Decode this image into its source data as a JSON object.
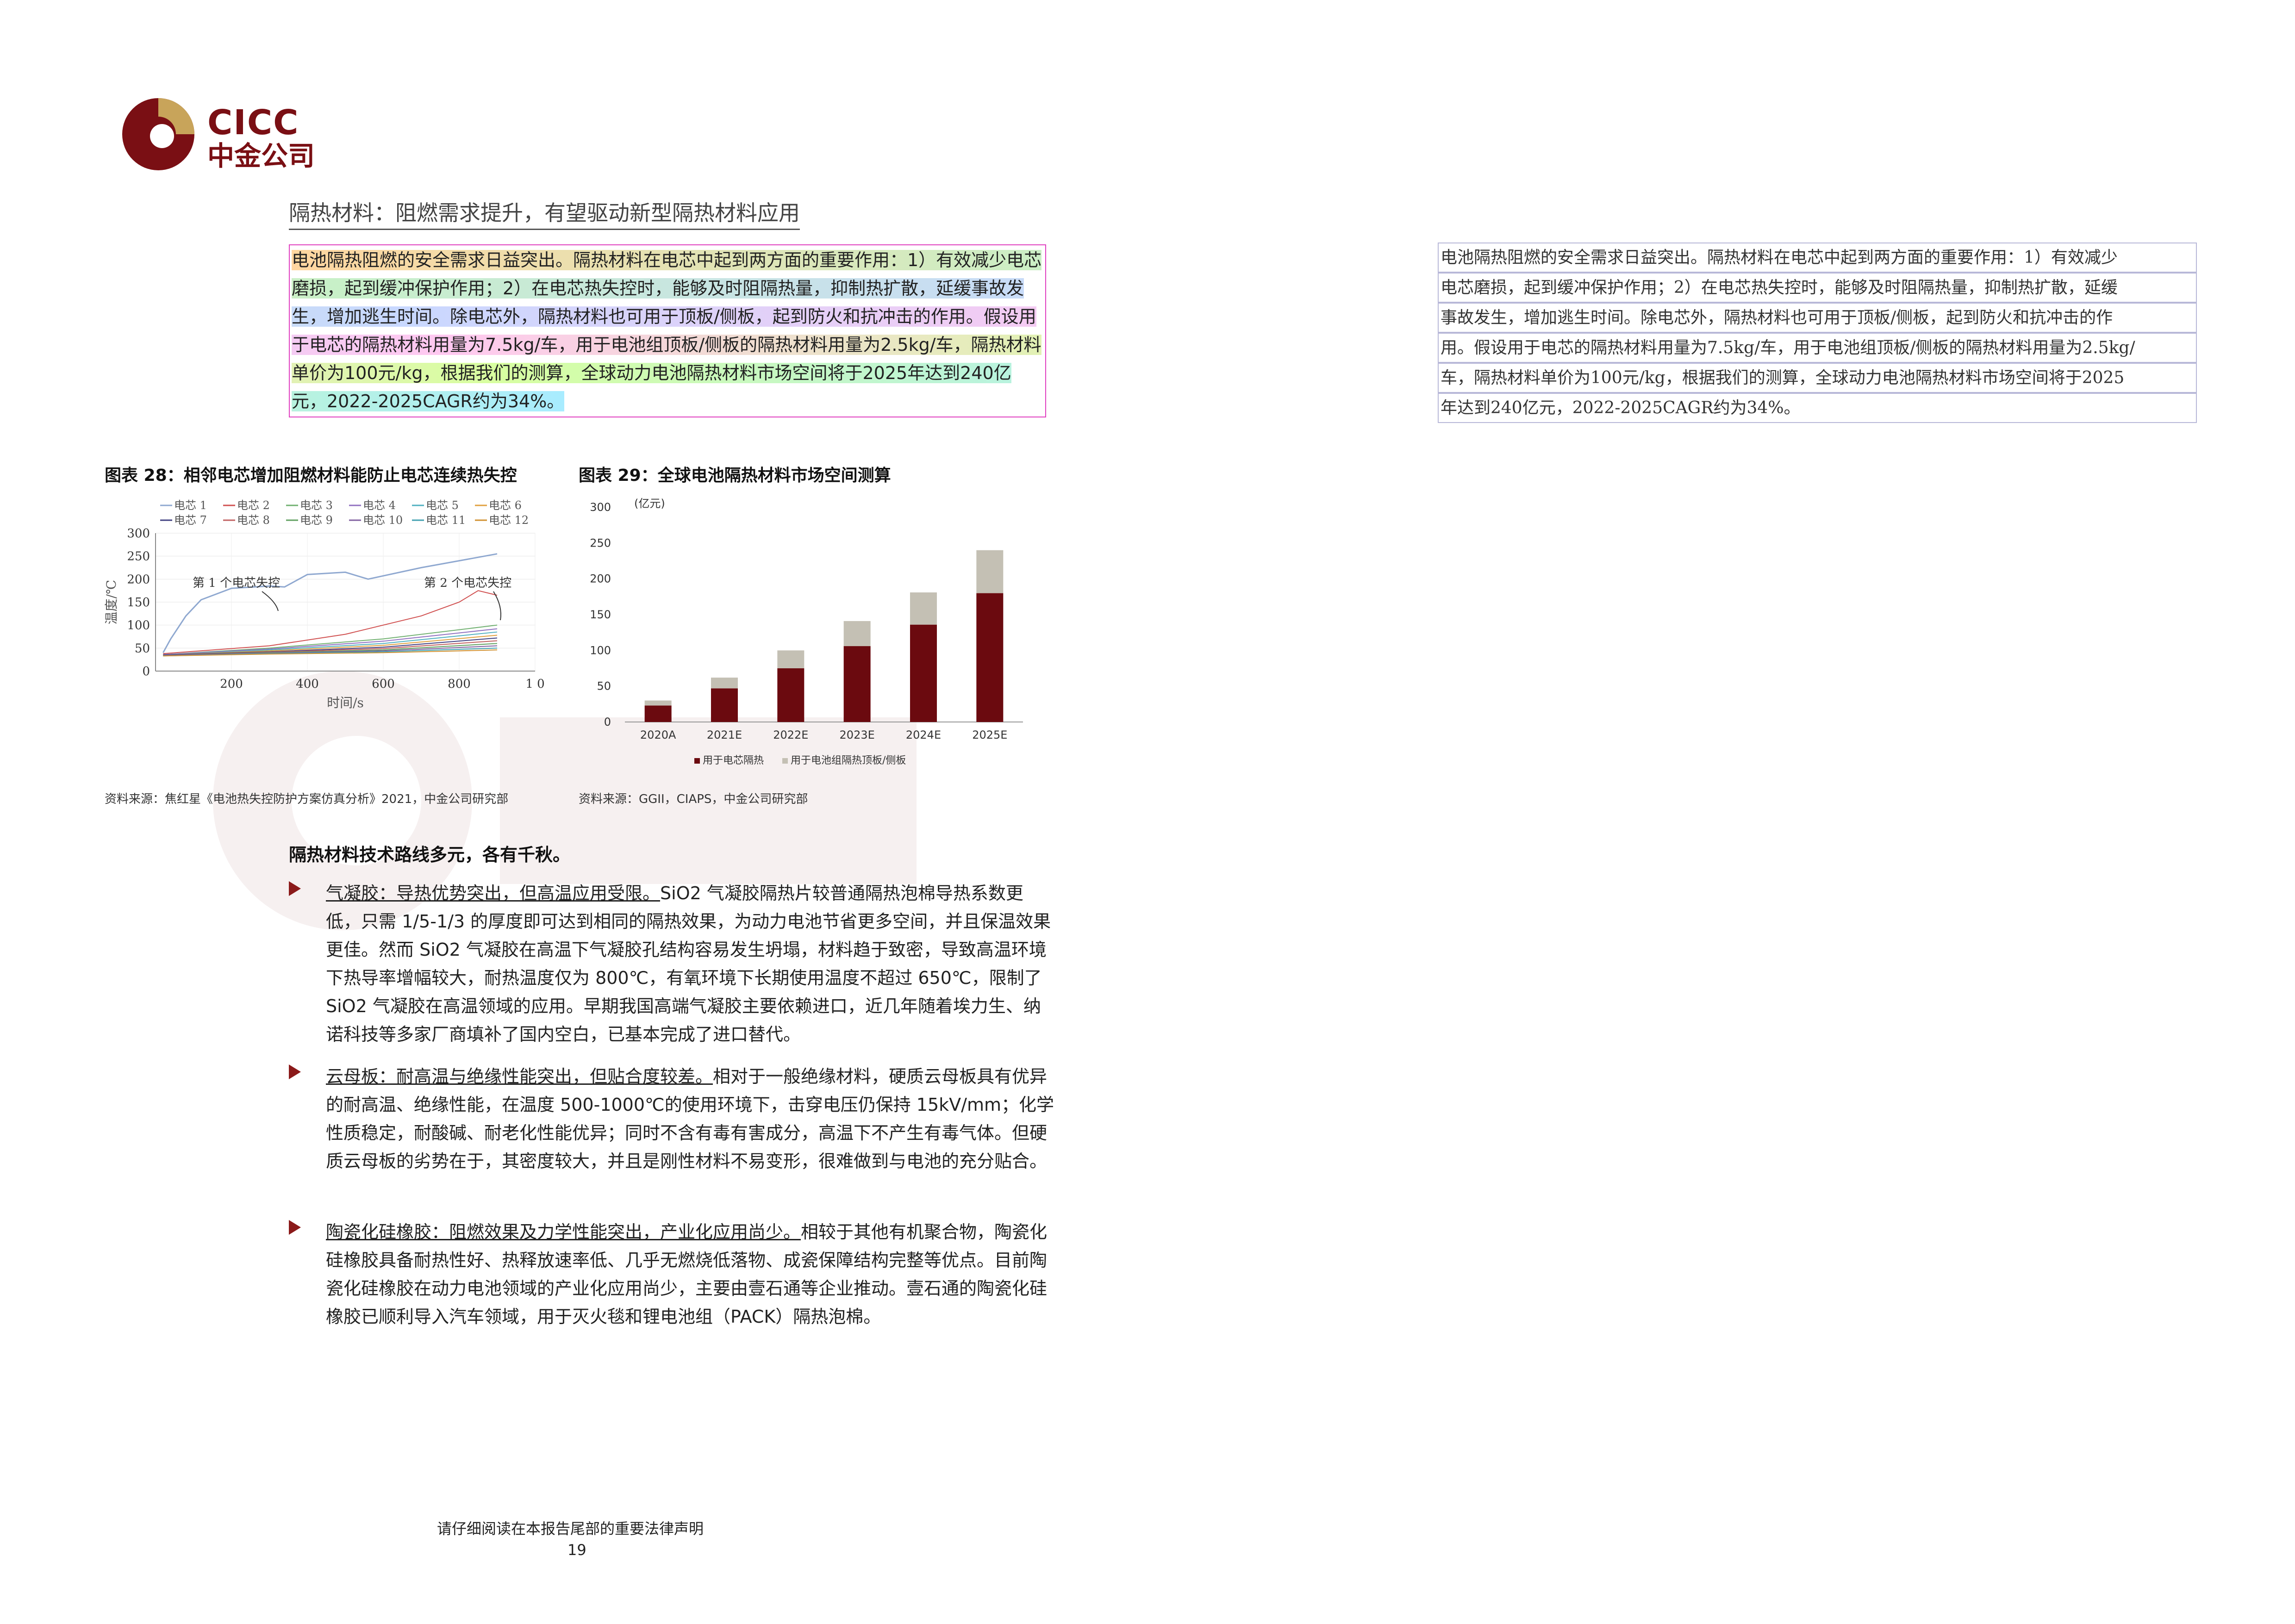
{
  "brand": {
    "name_en": "CICC",
    "name_cn": "中金公司"
  },
  "section_title": "隔热材料：阻燃需求提升，有望驱动新型隔热材料应用",
  "intro_paragraph": "电池隔热阻燃的安全需求日益突出。隔热材料在电芯中起到两方面的重要作用：1）有效减少电芯磨损，起到缓冲保护作用；2）在电芯热失控时，能够及时阻隔热量，抑制热扩散，延缓事故发生，增加逃生时间。除电芯外，隔热材料也可用于顶板/侧板，起到防火和抗冲击的作用。假设用于电芯的隔热材料用量为7.5kg/车，用于电池组顶板/侧板的隔热材料用量为2.5kg/车，隔热材料单价为100元/kg，根据我们的测算，全球动力电池隔热材料市场空间将于2025年达到240亿元，2022-2025CAGR约为34%。",
  "ocr_lines": [
    "电池隔热阻燃的安全需求日益突出。隔热材料在电芯中起到两方面的重要作用：1）有效减少",
    "电芯磨损，起到缓冲保护作用；2）在电芯热失控时，能够及时阻隔热量，抑制热扩散，延缓",
    "事故发生，增加逃生时间。除电芯外，隔热材料也可用于顶板/侧板，起到防火和抗冲击的作",
    "用。假设用于电芯的隔热材料用量为7.5kg/车，用于电池组顶板/侧板的隔热材料用量为2.5kg/",
    "车，隔热材料单价为100元/kg，根据我们的测算，全球动力电池隔热材料市场空间将于2025",
    "年达到240亿元，2022-2025CAGR约为34%。"
  ],
  "figure28": {
    "title": "图表 28：相邻电芯增加阻燃材料能防止电芯连续热失控",
    "source": "资料来源：焦红星《电池热失控防护方案仿真分析》2021，中金公司研究部",
    "chart_data": {
      "type": "line",
      "xlabel": "时间/s",
      "ylabel": "温度/℃",
      "xlim": [
        0,
        1000
      ],
      "ylim": [
        0,
        300
      ],
      "x_ticks": [
        "200",
        "400",
        "600",
        "800",
        "1 0"
      ],
      "y_ticks": [
        "0",
        "50",
        "100",
        "150",
        "200",
        "250",
        "300"
      ],
      "legend_row1": [
        "电芯 1",
        "电芯 2",
        "电芯 3",
        "电芯 4",
        "电芯 5",
        "电芯 6"
      ],
      "legend_row2": [
        "电芯 7",
        "电芯 8",
        "电芯 9",
        "电芯 10",
        "电芯 11",
        "电芯 12"
      ],
      "annotations": [
        "第 1 个电芯失控",
        "第 2 个电芯失控"
      ],
      "series_colors": [
        "#8fa8d0",
        "#d05050",
        "#70b070",
        "#9070c0",
        "#50b0c0",
        "#e0a040",
        "#404080",
        "#c06060",
        "#60a060",
        "#8060a0",
        "#40a0b0",
        "#d09030"
      ],
      "series": [
        {
          "x": [
            20,
            40,
            80,
            120,
            200,
            300,
            340,
            400,
            500,
            560,
            700,
            800,
            900
          ],
          "values": [
            40,
            70,
            120,
            155,
            180,
            185,
            183,
            210,
            215,
            200,
            225,
            240,
            255
          ]
        },
        {
          "x": [
            20,
            300,
            500,
            700,
            800,
            850,
            900
          ],
          "values": [
            38,
            55,
            80,
            120,
            150,
            175,
            165
          ]
        },
        {
          "x": [
            20,
            300,
            600,
            900
          ],
          "values": [
            36,
            50,
            70,
            100
          ]
        },
        {
          "x": [
            20,
            300,
            600,
            900
          ],
          "values": [
            36,
            48,
            65,
            92
          ]
        },
        {
          "x": [
            20,
            300,
            600,
            900
          ],
          "values": [
            35,
            46,
            60,
            85
          ]
        },
        {
          "x": [
            20,
            300,
            600,
            900
          ],
          "values": [
            35,
            44,
            56,
            78
          ]
        },
        {
          "x": [
            20,
            300,
            600,
            900
          ],
          "values": [
            35,
            42,
            52,
            72
          ]
        },
        {
          "x": [
            20,
            300,
            600,
            900
          ],
          "values": [
            34,
            41,
            49,
            66
          ]
        },
        {
          "x": [
            20,
            300,
            600,
            900
          ],
          "values": [
            34,
            40,
            46,
            60
          ]
        },
        {
          "x": [
            20,
            300,
            600,
            900
          ],
          "values": [
            34,
            39,
            44,
            55
          ]
        },
        {
          "x": [
            20,
            300,
            600,
            900
          ],
          "values": [
            33,
            38,
            42,
            50
          ]
        },
        {
          "x": [
            20,
            300,
            600,
            900
          ],
          "values": [
            33,
            37,
            40,
            46
          ]
        }
      ]
    }
  },
  "figure29": {
    "title": "图表 29：全球电池隔热材料市场空间测算",
    "source": "资料来源：GGII，CIAPS，中金公司研究部",
    "chart_data": {
      "type": "bar",
      "stacked": true,
      "unit": "(亿元)",
      "categories": [
        "2020A",
        "2021E",
        "2022E",
        "2023E",
        "2024E",
        "2025E"
      ],
      "ylim": [
        0,
        300
      ],
      "y_ticks": [
        "0",
        "50",
        "100",
        "150",
        "200",
        "250",
        "300"
      ],
      "series": [
        {
          "name": "用于电芯隔热",
          "color": "#6b0a0f",
          "values": [
            23,
            47,
            75,
            106,
            136,
            180
          ]
        },
        {
          "name": "用于电池组隔热顶板/侧板",
          "color": "#c4c0b4",
          "values": [
            7,
            15,
            25,
            35,
            45,
            60
          ]
        }
      ]
    }
  },
  "tech_title": "隔热材料技术路线多元，各有千秋。",
  "bullets": [
    {
      "lead": "气凝胶：导热优势突出，但高温应用受限。",
      "text": "SiO2 气凝胶隔热片较普通隔热泡棉导热系数更低，只需 1/5-1/3 的厚度即可达到相同的隔热效果，为动力电池节省更多空间，并且保温效果更佳。然而 SiO2 气凝胶在高温下气凝胶孔结构容易发生坍塌，材料趋于致密，导致高温环境下热导率增幅较大，耐热温度仅为 800℃，有氧环境下长期使用温度不超过 650℃，限制了 SiO2 气凝胶在高温领域的应用。早期我国高端气凝胶主要依赖进口，近几年随着埃力生、纳诺科技等多家厂商填补了国内空白，已基本完成了进口替代。"
    },
    {
      "lead": "云母板：耐高温与绝缘性能突出，但贴合度较差。",
      "text": "相对于一般绝缘材料，硬质云母板具有优异的耐高温、绝缘性能，在温度 500-1000℃的使用环境下，击穿电压仍保持 15kV/mm；化学性质稳定，耐酸碱、耐老化性能优异；同时不含有毒有害成分，高温下不产生有毒气体。但硬质云母板的劣势在于，其密度较大，并且是刚性材料不易变形，很难做到与电池的充分贴合。"
    },
    {
      "lead": "陶瓷化硅橡胶：阻燃效果及力学性能突出，产业化应用尚少。",
      "text": "相较于其他有机聚合物，陶瓷化硅橡胶具备耐热性好、热释放速率低、几乎无燃烧低落物、成瓷保障结构完整等优点。目前陶瓷化硅橡胶在动力电池领域的产业化应用尚少，主要由壹石通等企业推动。壹石通的陶瓷化硅橡胶已顺利导入汽车领域，用于灭火毯和锂电池组（PACK）隔热泡棉。"
    }
  ],
  "footer": {
    "notice": "请仔细阅读在本报告尾部的重要法律声明",
    "page": "19"
  }
}
